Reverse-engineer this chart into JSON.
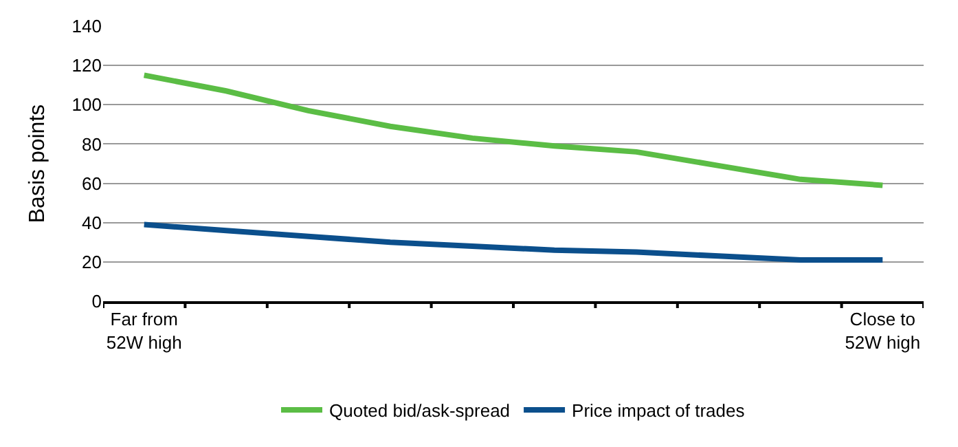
{
  "chart_data": {
    "type": "line",
    "ylabel": "Basis points",
    "categories": [
      "Far from\n52W high",
      null,
      null,
      null,
      null,
      null,
      null,
      null,
      null,
      "Close to\n52W high"
    ],
    "series": [
      {
        "name": "Quoted bid/ask-spread",
        "color": "#5bbd45",
        "values": [
          115,
          107,
          97,
          89,
          83,
          79,
          76,
          69,
          62,
          59
        ]
      },
      {
        "name": "Price impact of trades",
        "color": "#0b4f8c",
        "values": [
          39,
          36,
          33,
          30,
          28,
          26,
          25,
          23,
          21,
          21
        ]
      }
    ],
    "ylim": [
      0,
      140
    ],
    "yticks": [
      0,
      20,
      40,
      60,
      80,
      100,
      120,
      140
    ],
    "grid": "y",
    "legend": "bottom",
    "marker": "none",
    "line_style": "solid"
  }
}
